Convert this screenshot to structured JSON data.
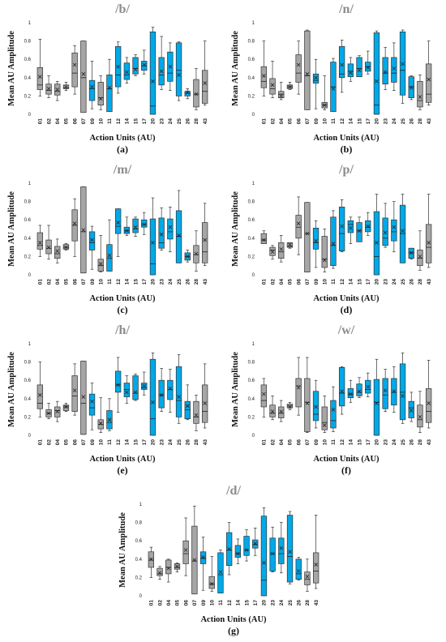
{
  "y_ticks": [
    "0",
    "0.2",
    "0.4",
    "0.6",
    "0.8",
    "1"
  ],
  "colors": {
    "grey": "#a6a6a6",
    "blue": "#00a9e8",
    "title": "#8c8c8c",
    "axis": "#d0d0d0"
  },
  "chart_data": [
    {
      "type": "box",
      "title": "/b/",
      "caption": "(a)",
      "xlabel": "Action Units (AU)",
      "ylabel": "Mean AU Amplitude",
      "ylim": [
        0,
        1
      ],
      "categories": [
        "01",
        "02",
        "04",
        "05",
        "06",
        "07",
        "09",
        "10",
        "11",
        "12",
        "14",
        "15",
        "17",
        "20",
        "23",
        "24",
        "25",
        "26",
        "28",
        "43"
      ],
      "category_colors": [
        "grey",
        "grey",
        "grey",
        "grey",
        "grey",
        "grey",
        "blue",
        "grey",
        "blue",
        "blue",
        "blue",
        "blue",
        "blue",
        "blue",
        "blue",
        "blue",
        "blue",
        "blue",
        "grey",
        "grey"
      ],
      "whisker_min": [
        0.2,
        0.18,
        0.15,
        0.26,
        0.22,
        0.02,
        0.06,
        0.05,
        0.03,
        0.23,
        0.34,
        0.42,
        0.44,
        0.0,
        0.27,
        0.26,
        0.15,
        0.17,
        0.05,
        0.1
      ],
      "q1": [
        0.27,
        0.22,
        0.21,
        0.28,
        0.3,
        0.02,
        0.15,
        0.1,
        0.03,
        0.3,
        0.38,
        0.44,
        0.48,
        0.0,
        0.32,
        0.36,
        0.2,
        0.2,
        0.08,
        0.12
      ],
      "median": [
        0.32,
        0.26,
        0.25,
        0.29,
        0.45,
        0.4,
        0.28,
        0.18,
        0.28,
        0.43,
        0.43,
        0.5,
        0.53,
        0.09,
        0.43,
        0.45,
        0.48,
        0.23,
        0.22,
        0.25
      ],
      "q3": [
        0.51,
        0.33,
        0.33,
        0.32,
        0.67,
        0.8,
        0.37,
        0.35,
        0.43,
        0.74,
        0.56,
        0.62,
        0.58,
        0.9,
        0.62,
        0.68,
        0.78,
        0.25,
        0.38,
        0.48
      ],
      "whisker_max": [
        0.82,
        0.42,
        0.36,
        0.35,
        0.75,
        0.8,
        0.58,
        0.42,
        0.6,
        0.79,
        0.62,
        0.65,
        0.7,
        0.95,
        0.85,
        0.78,
        0.79,
        0.28,
        0.5,
        0.8
      ],
      "mean": [
        0.41,
        0.28,
        0.27,
        0.3,
        0.54,
        0.44,
        0.3,
        0.17,
        0.29,
        0.52,
        0.46,
        0.49,
        0.54,
        0.36,
        0.47,
        0.52,
        0.43,
        0.24,
        0.22,
        0.34
      ]
    },
    {
      "type": "box",
      "title": "/n/",
      "caption": "(b)",
      "xlabel": "Action Units (AU)",
      "ylabel": "Mean AU Amplitude",
      "ylim": [
        0,
        1
      ],
      "categories": [
        "01",
        "02",
        "04",
        "05",
        "06",
        "07",
        "09",
        "10",
        "11",
        "12",
        "14",
        "15",
        "17",
        "20",
        "23",
        "24",
        "25",
        "26",
        "28",
        "43"
      ],
      "category_colors": [
        "grey",
        "grey",
        "grey",
        "grey",
        "grey",
        "grey",
        "blue",
        "grey",
        "blue",
        "blue",
        "blue",
        "blue",
        "blue",
        "blue",
        "blue",
        "blue",
        "blue",
        "blue",
        "grey",
        "grey"
      ],
      "whisker_min": [
        0.2,
        0.18,
        0.16,
        0.27,
        0.22,
        0.05,
        0.06,
        0.05,
        0.03,
        0.24,
        0.36,
        0.41,
        0.44,
        0.0,
        0.27,
        0.26,
        0.12,
        0.16,
        0.05,
        0.1
      ],
      "q1": [
        0.29,
        0.22,
        0.18,
        0.28,
        0.35,
        0.05,
        0.34,
        0.07,
        0.03,
        0.4,
        0.41,
        0.41,
        0.47,
        0.0,
        0.33,
        0.35,
        0.21,
        0.18,
        0.08,
        0.13
      ],
      "median": [
        0.36,
        0.28,
        0.22,
        0.3,
        0.45,
        0.42,
        0.37,
        0.1,
        0.3,
        0.44,
        0.47,
        0.5,
        0.52,
        0.1,
        0.45,
        0.45,
        0.48,
        0.3,
        0.15,
        0.22
      ],
      "q3": [
        0.52,
        0.39,
        0.25,
        0.32,
        0.65,
        0.91,
        0.44,
        0.13,
        0.57,
        0.74,
        0.55,
        0.62,
        0.57,
        0.89,
        0.62,
        0.62,
        0.9,
        0.41,
        0.36,
        0.55
      ],
      "whisker_max": [
        0.8,
        0.58,
        0.35,
        0.35,
        0.8,
        0.92,
        0.6,
        0.42,
        0.61,
        0.81,
        0.62,
        0.64,
        0.69,
        0.91,
        0.73,
        0.78,
        0.92,
        0.42,
        0.43,
        0.8
      ],
      "mean": [
        0.42,
        0.32,
        0.2,
        0.3,
        0.54,
        0.44,
        0.4,
        0.1,
        0.28,
        0.54,
        0.45,
        0.48,
        0.51,
        0.36,
        0.46,
        0.5,
        0.55,
        0.29,
        0.19,
        0.38
      ]
    },
    {
      "type": "box",
      "title": "/m/",
      "caption": "(c)",
      "xlabel": "Action Units (AU)",
      "ylabel": "Mean AU Amplitude",
      "ylim": [
        0,
        1
      ],
      "categories": [
        "01",
        "02",
        "04",
        "05",
        "06",
        "07",
        "09",
        "10",
        "11",
        "12",
        "14",
        "15",
        "17",
        "20",
        "23",
        "24",
        "25",
        "26",
        "28",
        "43"
      ],
      "category_colors": [
        "grey",
        "grey",
        "grey",
        "grey",
        "grey",
        "grey",
        "blue",
        "grey",
        "blue",
        "blue",
        "blue",
        "blue",
        "blue",
        "blue",
        "blue",
        "blue",
        "blue",
        "blue",
        "grey",
        "grey"
      ],
      "whisker_min": [
        0.2,
        0.17,
        0.13,
        0.27,
        0.2,
        0.02,
        0.06,
        0.03,
        0.04,
        0.2,
        0.43,
        0.42,
        0.44,
        0.0,
        0.27,
        0.25,
        0.13,
        0.14,
        0.04,
        0.1
      ],
      "q1": [
        0.28,
        0.23,
        0.18,
        0.28,
        0.37,
        0.02,
        0.27,
        0.04,
        0.04,
        0.45,
        0.45,
        0.46,
        0.52,
        0.0,
        0.29,
        0.39,
        0.13,
        0.16,
        0.13,
        0.13
      ],
      "median": [
        0.32,
        0.29,
        0.23,
        0.3,
        0.54,
        0.47,
        0.35,
        0.1,
        0.18,
        0.53,
        0.48,
        0.5,
        0.55,
        0.12,
        0.35,
        0.47,
        0.42,
        0.2,
        0.22,
        0.25
      ],
      "q3": [
        0.46,
        0.38,
        0.31,
        0.33,
        0.71,
        0.96,
        0.47,
        0.17,
        0.33,
        0.72,
        0.52,
        0.61,
        0.6,
        0.61,
        0.62,
        0.61,
        0.7,
        0.24,
        0.32,
        0.57
      ],
      "whisker_max": [
        0.54,
        0.54,
        0.39,
        0.34,
        0.83,
        0.96,
        0.53,
        0.43,
        0.6,
        0.72,
        0.63,
        0.63,
        0.68,
        0.84,
        0.73,
        0.74,
        0.92,
        0.27,
        0.48,
        0.78
      ],
      "mean": [
        0.35,
        0.3,
        0.26,
        0.3,
        0.56,
        0.49,
        0.38,
        0.12,
        0.21,
        0.57,
        0.48,
        0.52,
        0.55,
        0.35,
        0.44,
        0.52,
        0.43,
        0.2,
        0.23,
        0.38
      ]
    },
    {
      "type": "box",
      "title": "/p/",
      "caption": "(d)",
      "xlabel": "Action Units (AU)",
      "ylabel": "Mean AU Amplitude",
      "ylim": [
        0,
        1
      ],
      "categories": [
        "01",
        "02",
        "04",
        "05",
        "06",
        "07",
        "09",
        "10",
        "11",
        "12",
        "14",
        "15",
        "17",
        "20",
        "23",
        "24",
        "25",
        "26",
        "28",
        "43"
      ],
      "category_colors": [
        "grey",
        "grey",
        "grey",
        "grey",
        "grey",
        "grey",
        "blue",
        "grey",
        "blue",
        "blue",
        "blue",
        "blue",
        "blue",
        "blue",
        "blue",
        "blue",
        "blue",
        "blue",
        "grey",
        "grey"
      ],
      "whisker_min": [
        0.34,
        0.17,
        0.14,
        0.29,
        0.22,
        0.03,
        0.08,
        0.03,
        0.07,
        0.25,
        0.34,
        0.39,
        0.43,
        0.0,
        0.3,
        0.25,
        0.13,
        0.17,
        0.05,
        0.08
      ],
      "q1": [
        0.34,
        0.21,
        0.18,
        0.3,
        0.4,
        0.03,
        0.28,
        0.08,
        0.1,
        0.26,
        0.46,
        0.36,
        0.47,
        0.0,
        0.32,
        0.37,
        0.13,
        0.18,
        0.1,
        0.13
      ],
      "median": [
        0.38,
        0.27,
        0.25,
        0.31,
        0.52,
        0.45,
        0.35,
        0.17,
        0.32,
        0.45,
        0.55,
        0.48,
        0.52,
        0.2,
        0.4,
        0.47,
        0.45,
        0.24,
        0.18,
        0.3
      ],
      "q3": [
        0.45,
        0.3,
        0.35,
        0.35,
        0.65,
        0.79,
        0.51,
        0.42,
        0.63,
        0.74,
        0.59,
        0.57,
        0.59,
        0.69,
        0.62,
        0.6,
        0.76,
        0.29,
        0.27,
        0.55
      ],
      "whisker_max": [
        0.48,
        0.32,
        0.43,
        0.35,
        0.85,
        0.79,
        0.59,
        0.5,
        0.7,
        0.82,
        0.63,
        0.63,
        0.68,
        0.88,
        0.78,
        0.8,
        0.88,
        0.29,
        0.48,
        0.88
      ],
      "mean": [
        0.38,
        0.25,
        0.28,
        0.33,
        0.56,
        0.45,
        0.37,
        0.16,
        0.34,
        0.53,
        0.51,
        0.48,
        0.53,
        0.35,
        0.46,
        0.52,
        0.48,
        0.24,
        0.2,
        0.35
      ]
    },
    {
      "type": "box",
      "title": "/h/",
      "caption": "(e)",
      "xlabel": "Action Units (AU)",
      "ylabel": "Mean AU Amplitude",
      "ylim": [
        0,
        1
      ],
      "categories": [
        "01",
        "02",
        "04",
        "05",
        "06",
        "07",
        "09",
        "10",
        "11",
        "12",
        "14",
        "15",
        "17",
        "20",
        "23",
        "24",
        "25",
        "26",
        "28",
        "43"
      ],
      "category_colors": [
        "grey",
        "grey",
        "grey",
        "grey",
        "grey",
        "grey",
        "blue",
        "grey",
        "blue",
        "blue",
        "blue",
        "blue",
        "blue",
        "blue",
        "blue",
        "blue",
        "blue",
        "blue",
        "grey",
        "grey"
      ],
      "whisker_min": [
        0.2,
        0.18,
        0.15,
        0.26,
        0.22,
        0.01,
        0.06,
        0.03,
        0.05,
        0.25,
        0.35,
        0.38,
        0.44,
        0.0,
        0.26,
        0.25,
        0.13,
        0.17,
        0.05,
        0.08
      ],
      "q1": [
        0.29,
        0.2,
        0.2,
        0.27,
        0.26,
        0.01,
        0.22,
        0.07,
        0.07,
        0.47,
        0.42,
        0.39,
        0.5,
        0.0,
        0.3,
        0.39,
        0.2,
        0.18,
        0.13,
        0.14
      ],
      "median": [
        0.35,
        0.24,
        0.27,
        0.31,
        0.43,
        0.35,
        0.3,
        0.12,
        0.14,
        0.55,
        0.5,
        0.46,
        0.52,
        0.18,
        0.44,
        0.5,
        0.38,
        0.28,
        0.2,
        0.26
      ],
      "q3": [
        0.55,
        0.28,
        0.31,
        0.33,
        0.65,
        0.81,
        0.45,
        0.17,
        0.27,
        0.7,
        0.57,
        0.65,
        0.57,
        0.83,
        0.6,
        0.6,
        0.75,
        0.37,
        0.37,
        0.55
      ],
      "whisker_max": [
        0.8,
        0.35,
        0.37,
        0.35,
        0.78,
        0.81,
        0.57,
        0.41,
        0.4,
        0.85,
        0.65,
        0.67,
        0.69,
        0.9,
        0.73,
        0.72,
        0.88,
        0.55,
        0.44,
        0.78
      ],
      "mean": [
        0.44,
        0.24,
        0.26,
        0.31,
        0.49,
        0.42,
        0.37,
        0.13,
        0.17,
        0.55,
        0.47,
        0.47,
        0.54,
        0.36,
        0.44,
        0.51,
        0.42,
        0.32,
        0.22,
        0.35
      ]
    },
    {
      "type": "box",
      "title": "/w/",
      "caption": "(f)",
      "xlabel": "Action Units (AU)",
      "ylabel": "Mean AU Amplitude",
      "ylim": [
        0,
        1
      ],
      "categories": [
        "01",
        "02",
        "04",
        "05",
        "06",
        "07",
        "09",
        "10",
        "11",
        "12",
        "14",
        "15",
        "17",
        "20",
        "23",
        "24",
        "25",
        "26",
        "28",
        "43"
      ],
      "category_colors": [
        "grey",
        "grey",
        "grey",
        "grey",
        "grey",
        "grey",
        "blue",
        "grey",
        "blue",
        "blue",
        "blue",
        "blue",
        "blue",
        "blue",
        "blue",
        "blue",
        "blue",
        "blue",
        "grey",
        "grey"
      ],
      "whisker_min": [
        0.2,
        0.17,
        0.15,
        0.28,
        0.22,
        0.03,
        0.08,
        0.03,
        0.04,
        0.23,
        0.36,
        0.41,
        0.42,
        0.0,
        0.26,
        0.25,
        0.13,
        0.15,
        0.03,
        0.08
      ],
      "q1": [
        0.31,
        0.2,
        0.19,
        0.3,
        0.31,
        0.04,
        0.16,
        0.06,
        0.08,
        0.32,
        0.41,
        0.43,
        0.46,
        0.0,
        0.29,
        0.33,
        0.17,
        0.19,
        0.09,
        0.14
      ],
      "median": [
        0.38,
        0.24,
        0.24,
        0.32,
        0.54,
        0.36,
        0.23,
        0.14,
        0.16,
        0.46,
        0.45,
        0.47,
        0.5,
        0.36,
        0.44,
        0.47,
        0.47,
        0.3,
        0.17,
        0.26
      ],
      "q3": [
        0.55,
        0.33,
        0.31,
        0.34,
        0.62,
        0.62,
        0.48,
        0.31,
        0.38,
        0.74,
        0.51,
        0.56,
        0.6,
        0.61,
        0.62,
        0.62,
        0.78,
        0.37,
        0.33,
        0.51
      ],
      "whisker_max": [
        0.62,
        0.43,
        0.38,
        0.36,
        0.85,
        0.85,
        0.6,
        0.43,
        0.53,
        0.75,
        0.6,
        0.63,
        0.68,
        0.83,
        0.72,
        0.75,
        0.9,
        0.47,
        0.48,
        0.82
      ],
      "mean": [
        0.45,
        0.26,
        0.26,
        0.31,
        0.52,
        0.35,
        0.31,
        0.11,
        0.28,
        0.48,
        0.45,
        0.48,
        0.53,
        0.35,
        0.49,
        0.48,
        0.43,
        0.27,
        0.2,
        0.35
      ]
    },
    {
      "type": "box",
      "title": "/d/",
      "caption": "(g)",
      "xlabel": "Action Units (AU)",
      "ylabel": "Mean AU Amplitude",
      "ylim": [
        0,
        1
      ],
      "categories": [
        "01",
        "02",
        "04",
        "05",
        "06",
        "07",
        "09",
        "10",
        "11",
        "12",
        "14",
        "15",
        "17",
        "20",
        "23",
        "24",
        "25",
        "26",
        "28",
        "43"
      ],
      "category_colors": [
        "grey",
        "grey",
        "grey",
        "grey",
        "grey",
        "grey",
        "blue",
        "grey",
        "blue",
        "blue",
        "blue",
        "blue",
        "blue",
        "blue",
        "blue",
        "blue",
        "blue",
        "blue",
        "grey",
        "grey"
      ],
      "whisker_min": [
        0.2,
        0.18,
        0.15,
        0.26,
        0.22,
        0.02,
        0.06,
        0.05,
        0.03,
        0.23,
        0.35,
        0.38,
        0.44,
        0.0,
        0.26,
        0.25,
        0.13,
        0.17,
        0.05,
        0.08
      ],
      "q1": [
        0.31,
        0.22,
        0.24,
        0.29,
        0.35,
        0.02,
        0.35,
        0.08,
        0.03,
        0.33,
        0.42,
        0.44,
        0.52,
        0.0,
        0.27,
        0.35,
        0.15,
        0.18,
        0.12,
        0.14
      ],
      "median": [
        0.39,
        0.24,
        0.31,
        0.31,
        0.46,
        0.38,
        0.41,
        0.13,
        0.23,
        0.5,
        0.46,
        0.5,
        0.56,
        0.17,
        0.46,
        0.46,
        0.43,
        0.24,
        0.18,
        0.27
      ],
      "q3": [
        0.48,
        0.3,
        0.39,
        0.35,
        0.6,
        0.76,
        0.48,
        0.21,
        0.47,
        0.69,
        0.55,
        0.65,
        0.61,
        0.87,
        0.63,
        0.63,
        0.88,
        0.4,
        0.26,
        0.47
      ],
      "whisker_max": [
        0.53,
        0.32,
        0.4,
        0.36,
        0.85,
        0.98,
        0.64,
        0.43,
        0.5,
        0.8,
        0.62,
        0.72,
        0.74,
        0.96,
        0.75,
        0.8,
        0.92,
        0.42,
        0.4,
        0.88
      ],
      "mean": [
        0.4,
        0.25,
        0.3,
        0.32,
        0.5,
        0.39,
        0.42,
        0.13,
        0.26,
        0.51,
        0.46,
        0.5,
        0.57,
        0.36,
        0.46,
        0.52,
        0.48,
        0.27,
        0.21,
        0.34
      ]
    }
  ]
}
